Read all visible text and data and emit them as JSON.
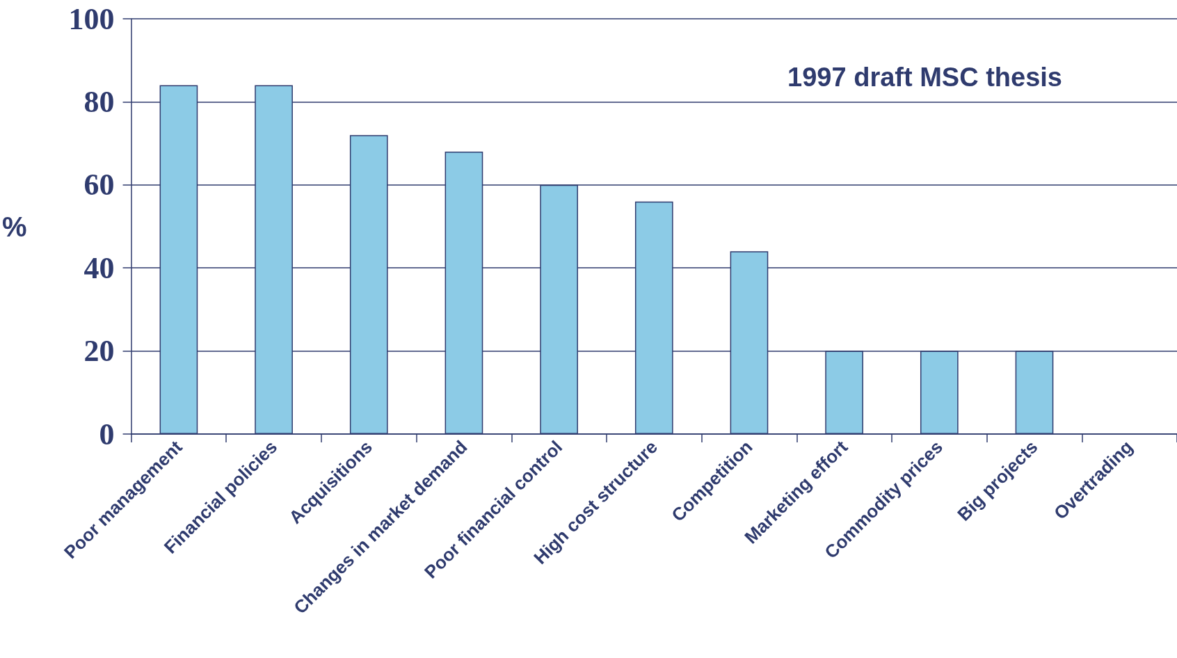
{
  "chart_data": {
    "type": "bar",
    "ylabel": "%",
    "annotations": [
      "1997 draft MSC thesis"
    ],
    "categories": [
      "Poor management",
      "Financial policies",
      "Acquisitions",
      "Changes in market demand",
      "Poor financial control",
      "High cost structure",
      "Competition",
      "Marketing effort",
      "Commodity prices",
      "Big projects",
      "Overtrading"
    ],
    "values": [
      84,
      84,
      72,
      68,
      60,
      56,
      44,
      20,
      20,
      20,
      0
    ],
    "color": "#8ccbe6",
    "ylim": [
      0,
      100
    ],
    "yticks": [
      0,
      20,
      40,
      60,
      80,
      100
    ],
    "grid": "y"
  }
}
